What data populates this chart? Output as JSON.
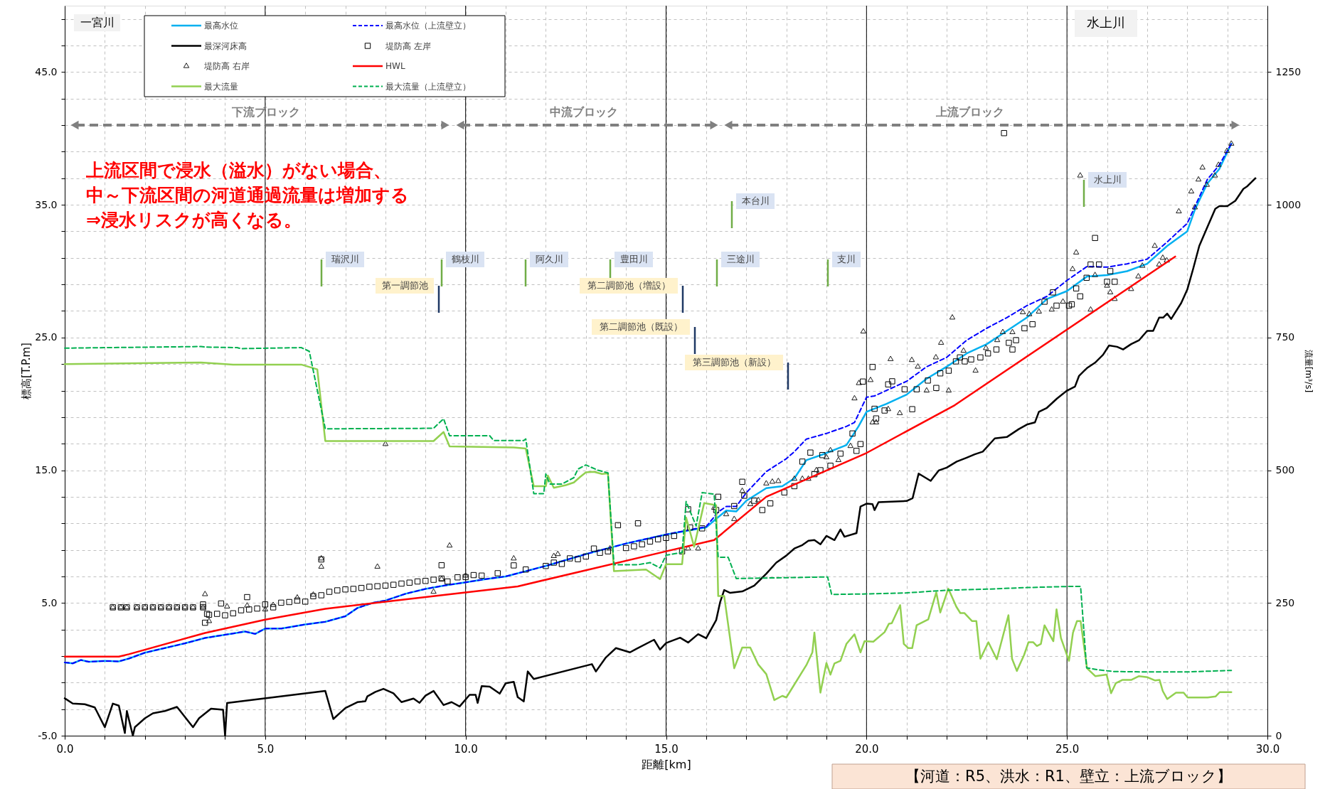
{
  "chart_data": {
    "type": "line",
    "xlabel": "距離[km]",
    "ylabel": "標高[T.P.m]",
    "y2label": "流量[m³/s]",
    "xlim": [
      0,
      30
    ],
    "ylim": [
      -5,
      50
    ],
    "y2lim": [
      0,
      1375
    ],
    "xticks": [
      {
        "value": 0,
        "label": "0.0"
      },
      {
        "value": 1,
        "label": null
      },
      {
        "value": 2,
        "label": null
      },
      {
        "value": 3,
        "label": null
      },
      {
        "value": 4,
        "label": null
      },
      {
        "value": 5,
        "label": "5.0"
      },
      {
        "value": 6,
        "label": null
      },
      {
        "value": 7,
        "label": null
      },
      {
        "value": 8,
        "label": null
      },
      {
        "value": 9,
        "label": null
      },
      {
        "value": 10,
        "label": "10.0"
      },
      {
        "value": 11,
        "label": null
      },
      {
        "value": 12,
        "label": null
      },
      {
        "value": 13,
        "label": null
      },
      {
        "value": 14,
        "label": null
      },
      {
        "value": 15,
        "label": "15.0"
      },
      {
        "value": 16,
        "label": null
      },
      {
        "value": 17,
        "label": null
      },
      {
        "value": 18,
        "label": null
      },
      {
        "value": 19,
        "label": null
      },
      {
        "value": 20,
        "label": "20.0"
      },
      {
        "value": 21,
        "label": null
      },
      {
        "value": 22,
        "label": null
      },
      {
        "value": 23,
        "label": null
      },
      {
        "value": 24,
        "label": null
      },
      {
        "value": 25,
        "label": "25.0"
      },
      {
        "value": 26,
        "label": null
      },
      {
        "value": 27,
        "label": null
      },
      {
        "value": 28,
        "label": null
      },
      {
        "value": 29,
        "label": null
      },
      {
        "value": 30,
        "label": "30.0"
      }
    ],
    "yticks": [
      {
        "value": -5,
        "label": "-5.0"
      },
      {
        "value": -3,
        "label": null
      },
      {
        "value": -1,
        "label": null
      },
      {
        "value": 1,
        "label": null
      },
      {
        "value": 3,
        "label": null
      },
      {
        "value": 5,
        "label": "5.0"
      },
      {
        "value": 7,
        "label": null
      },
      {
        "value": 9,
        "label": null
      },
      {
        "value": 11,
        "label": null
      },
      {
        "value": 13,
        "label": null
      },
      {
        "value": 15,
        "label": "15.0"
      },
      {
        "value": 17,
        "label": null
      },
      {
        "value": 19,
        "label": null
      },
      {
        "value": 21,
        "label": null
      },
      {
        "value": 23,
        "label": null
      },
      {
        "value": 25,
        "label": "25.0"
      },
      {
        "value": 27,
        "label": null
      },
      {
        "value": 29,
        "label": null
      },
      {
        "value": 31,
        "label": null
      },
      {
        "value": 33,
        "label": null
      },
      {
        "value": 35,
        "label": "35.0"
      },
      {
        "value": 37,
        "label": null
      },
      {
        "value": 39,
        "label": null
      },
      {
        "value": 41,
        "label": null
      },
      {
        "value": 43,
        "label": null
      },
      {
        "value": 45,
        "label": "45.0"
      },
      {
        "value": 47,
        "label": null
      },
      {
        "value": 49,
        "label": null
      }
    ],
    "y2ticks": [
      0,
      250,
      500,
      750,
      1000,
      1250
    ],
    "grid": true,
    "legend": "top left",
    "series": [
      {
        "name": "最高水位",
        "color": "#00b0f0",
        "x": [
          0,
          0.2,
          0.4,
          0.6,
          1.0,
          1.35,
          1.6,
          2.0,
          3.0,
          3.5,
          4.5,
          4.75,
          5.0,
          5.4,
          6.0,
          6.5,
          7.0,
          7.3,
          7.7,
          8.0,
          8.5,
          9.0,
          9.5,
          10.0,
          10.5,
          11.0,
          12.0,
          13.0,
          14.0,
          15.0,
          16.0,
          16.3,
          16.5,
          16.75,
          17.0,
          17.5,
          17.9,
          18.2,
          18.5,
          18.9,
          19.5,
          19.8,
          20.0,
          20.5,
          21.0,
          21.5,
          22.0,
          22.5,
          23.0,
          23.5,
          24.0,
          24.5,
          25.0,
          25.5,
          26.0,
          26.5,
          27.0,
          27.5,
          28.0,
          28.2,
          28.5,
          28.8,
          29.1
        ],
        "values": [
          0.52,
          0.45,
          0.7,
          0.57,
          0.63,
          0.6,
          0.81,
          1.25,
          1.96,
          2.36,
          2.85,
          2.67,
          3.07,
          3.07,
          3.38,
          3.58,
          4.0,
          4.62,
          5.02,
          5.18,
          5.69,
          6.06,
          6.33,
          6.55,
          6.8,
          7.0,
          7.79,
          8.68,
          9.48,
          10.16,
          10.69,
          11.47,
          11.96,
          11.89,
          12.7,
          13.65,
          13.8,
          14.39,
          15.76,
          16.18,
          16.9,
          18.3,
          19.4,
          20.0,
          20.7,
          21.9,
          22.8,
          23.8,
          24.5,
          25.5,
          26.5,
          27.9,
          28.5,
          29.6,
          29.7,
          30.0,
          30.55,
          31.9,
          33.0,
          34.7,
          36.6,
          37.7,
          39.6
        ]
      },
      {
        "name": "最高水位（上流壁立）",
        "line_style": "dashed",
        "color": "#0000ff",
        "x": [
          0,
          0.2,
          0.4,
          0.6,
          1.0,
          1.35,
          1.6,
          2.0,
          3.0,
          3.5,
          4.5,
          4.75,
          5.0,
          5.4,
          6.0,
          6.5,
          7.0,
          7.3,
          7.7,
          8.0,
          8.5,
          9.0,
          9.5,
          10.0,
          10.5,
          11.0,
          12.0,
          13.0,
          14.0,
          15.0,
          16.0,
          16.3,
          16.5,
          16.75,
          17.0,
          17.5,
          18.0,
          18.2,
          18.5,
          19.0,
          19.5,
          19.7,
          20.0,
          20.2,
          21.0,
          21.5,
          22.0,
          22.5,
          23.0,
          23.5,
          24.0,
          24.5,
          25.0,
          25.5,
          26.0,
          26.5,
          27.0,
          27.5,
          28.0,
          28.5,
          28.8,
          29.1
        ],
        "values": [
          0.52,
          0.45,
          0.7,
          0.57,
          0.63,
          0.6,
          0.81,
          1.25,
          1.96,
          2.36,
          2.85,
          2.67,
          3.07,
          3.07,
          3.38,
          3.58,
          4.0,
          4.62,
          5.02,
          5.18,
          5.69,
          6.06,
          6.33,
          6.55,
          6.8,
          7.0,
          7.79,
          8.68,
          9.48,
          10.16,
          10.75,
          11.85,
          12.27,
          12.27,
          13.3,
          14.9,
          15.87,
          16.4,
          17.35,
          17.77,
          18.3,
          18.6,
          20.5,
          20.6,
          21.7,
          22.8,
          23.5,
          24.8,
          25.7,
          26.5,
          27.4,
          28.1,
          29.3,
          30.35,
          30.3,
          30.55,
          30.9,
          32.2,
          33.6,
          36.9,
          38.0,
          39.6
        ]
      },
      {
        "name": "最深河床高",
        "color": "#000000",
        "x": [
          0,
          0.2,
          0.5,
          0.75,
          1.0,
          1.2,
          1.35,
          1.5,
          1.55,
          1.7,
          1.75,
          2.0,
          2.2,
          2.5,
          2.8,
          3.2,
          3.35,
          3.65,
          3.95,
          4.0,
          4.05,
          6.5,
          6.7,
          7.0,
          7.3,
          7.5,
          7.55,
          7.75,
          7.95,
          8.2,
          8.4,
          8.7,
          8.85,
          9.0,
          9.2,
          9.45,
          9.65,
          9.85,
          10.1,
          10.25,
          10.3,
          10.4,
          10.6,
          10.85,
          11.0,
          11.2,
          11.3,
          11.45,
          11.55,
          11.7,
          13.15,
          13.25,
          13.5,
          13.75,
          14.1,
          14.25,
          14.7,
          14.85,
          15.0,
          15.35,
          15.55,
          15.8,
          16.0,
          16.25,
          16.35,
          16.45,
          16.6,
          16.9,
          17.2,
          17.5,
          17.75,
          18.0,
          18.2,
          18.4,
          18.55,
          18.7,
          18.85,
          19.0,
          19.2,
          19.35,
          19.45,
          19.75,
          19.85,
          20.0,
          20.15,
          20.2,
          20.3,
          21.0,
          21.15,
          21.3,
          21.6,
          21.8,
          22.0,
          22.25,
          22.5,
          22.7,
          22.9,
          23.2,
          23.5,
          23.8,
          24.0,
          24.2,
          24.3,
          24.5,
          24.75,
          25.0,
          25.2,
          25.3,
          25.5,
          25.7,
          25.9,
          26.05,
          26.25,
          26.4,
          26.6,
          26.8,
          27.0,
          27.15,
          27.3,
          27.4,
          27.5,
          27.6,
          27.85,
          28.0,
          28.15,
          28.3,
          28.5,
          28.7,
          28.8,
          29.0,
          29.2,
          29.4,
          29.5,
          29.7
        ],
        "values": [
          -2.18,
          -2.58,
          -2.63,
          -2.87,
          -4.36,
          -2.58,
          -2.74,
          -4.8,
          -3.14,
          -5.0,
          -4.36,
          -3.69,
          -3.31,
          -3.14,
          -2.83,
          -4.36,
          -3.69,
          -2.96,
          -3.05,
          -5.0,
          -2.54,
          -1.63,
          -3.74,
          -2.92,
          -2.47,
          -2.4,
          -2.03,
          -1.7,
          -1.47,
          -1.81,
          -2.47,
          -2.2,
          -2.52,
          -1.98,
          -1.63,
          -2.69,
          -2.47,
          -2.8,
          -1.92,
          -1.92,
          -2.53,
          -1.26,
          -1.3,
          -1.83,
          -1.05,
          -0.94,
          -2.1,
          -2.42,
          -0.16,
          -0.73,
          0.39,
          -0.16,
          0.9,
          1.6,
          1.28,
          1.53,
          2.23,
          1.49,
          1.98,
          2.38,
          2.02,
          2.65,
          2.34,
          3.71,
          5.08,
          5.97,
          5.76,
          5.87,
          6.31,
          7.2,
          8.04,
          8.57,
          9.1,
          9.36,
          9.69,
          9.74,
          9.42,
          10.05,
          9.74,
          10.54,
          9.99,
          10.26,
          12.27,
          12.48,
          12.44,
          12.0,
          12.59,
          12.68,
          12.9,
          14.75,
          14.2,
          14.98,
          15.2,
          15.65,
          15.95,
          16.2,
          16.4,
          17.4,
          17.5,
          18.1,
          18.44,
          18.6,
          19.4,
          19.7,
          20.4,
          21.0,
          21.3,
          22.1,
          22.7,
          23.1,
          23.7,
          24.4,
          24.3,
          24.1,
          24.5,
          24.8,
          25.5,
          25.5,
          26.5,
          26.5,
          26.8,
          26.4,
          27.6,
          28.6,
          30.2,
          31.9,
          33.3,
          34.7,
          34.9,
          34.9,
          35.3,
          36.2,
          36.4,
          37.0
        ]
      },
      {
        "name": "堤防高 左岸",
        "type": "scatter",
        "marker": "square",
        "color": "#000000",
        "x": [
          1.2,
          1.4,
          1.55,
          1.8,
          2.0,
          2.2,
          2.4,
          2.6,
          2.8,
          3.0,
          3.2,
          3.45,
          3.45,
          3.55,
          3.5,
          3.6,
          3.8,
          3.9,
          4.0,
          4.2,
          4.4,
          4.55,
          4.6,
          4.8,
          5.0,
          5.2,
          5.4,
          5.6,
          5.8,
          6.0,
          6.2,
          6.4,
          6.4,
          6.6,
          6.8,
          7.0,
          7.2,
          7.4,
          7.6,
          7.8,
          8.0,
          8.2,
          8.4,
          8.6,
          8.8,
          9.0,
          9.2,
          9.4,
          9.4,
          9.55,
          9.8,
          10.0,
          10.2,
          10.4,
          10.8,
          11.2,
          11.5,
          12.0,
          12.2,
          12.4,
          12.6,
          12.8,
          13.0,
          13.2,
          13.35,
          13.55,
          13.8,
          14.0,
          14.2,
          14.3,
          14.4,
          14.6,
          14.8,
          15.0,
          15.2,
          15.4,
          15.55,
          15.6,
          15.9,
          16.25,
          16.3,
          16.7,
          16.9,
          16.95,
          17.2,
          17.4,
          17.6,
          17.95,
          18.2,
          18.4,
          18.6,
          18.7,
          18.85,
          18.9,
          19.1,
          19.35,
          19.65,
          19.75,
          19.85,
          19.91,
          20.15,
          20.2,
          20.45,
          20.24,
          20.64,
          20.54,
          20.95,
          21.14,
          21.25,
          21.53,
          21.74,
          21.84,
          22.05,
          22.23,
          22.33,
          22.45,
          22.61,
          22.84,
          23.03,
          23.24,
          23.43,
          23.55,
          23.64,
          23.73,
          23.94,
          24.14,
          24.44,
          24.65,
          24.74,
          25.05,
          25.12,
          25.23,
          25.33,
          25.49,
          25.59,
          25.7,
          25.8,
          26.0,
          26.08,
          26.19
        ],
        "values": [
          4.67,
          4.67,
          4.67,
          4.67,
          4.67,
          4.67,
          4.67,
          4.67,
          4.67,
          4.67,
          4.67,
          4.67,
          4.89,
          4.18,
          3.51,
          4.11,
          4.18,
          4.96,
          4.07,
          4.22,
          4.45,
          5.44,
          4.51,
          4.58,
          4.89,
          4.67,
          5.02,
          5.07,
          5.18,
          5.1,
          5.51,
          8.28,
          5.58,
          5.84,
          5.95,
          6.02,
          6.06,
          6.13,
          6.22,
          6.26,
          6.31,
          6.37,
          6.46,
          6.53,
          6.62,
          6.66,
          6.75,
          7.84,
          6.84,
          6.62,
          6.93,
          6.95,
          7.1,
          7.06,
          7.24,
          7.83,
          7.52,
          7.79,
          8.04,
          7.94,
          8.36,
          8.3,
          8.5,
          9.1,
          8.78,
          8.89,
          10.86,
          9.14,
          9.27,
          11.0,
          9.42,
          9.63,
          9.8,
          9.9,
          10.05,
          8.89,
          12.06,
          10.69,
          10.62,
          12.0,
          13.0,
          12.3,
          14.13,
          13.08,
          12.7,
          12.0,
          12.5,
          13.33,
          13.8,
          15.65,
          16.33,
          14.7,
          15.0,
          16.14,
          15.34,
          16.25,
          17.77,
          16.46,
          16.97,
          21.68,
          22.78,
          19.63,
          19.5,
          18.9,
          21.7,
          21.47,
          21.1,
          19.6,
          21.1,
          21.76,
          21.2,
          22.3,
          22.5,
          23.2,
          23.5,
          23.2,
          23.35,
          23.5,
          23.8,
          24.1,
          40.4,
          24.6,
          24.1,
          24.8,
          25.7,
          26.0,
          27.7,
          28.4,
          27.4,
          27.4,
          27.5,
          28.7,
          28.1,
          29.5,
          30.5,
          32.5,
          30.5,
          29.2,
          30.0,
          29.2
        ]
      },
      {
        "name": "堤防高 右岸",
        "type": "scatter",
        "marker": "triangle",
        "color": "#1a1a1a",
        "x": [
          1.2,
          1.4,
          1.55,
          1.8,
          2.0,
          2.2,
          2.4,
          2.6,
          2.8,
          3.0,
          3.2,
          3.45,
          3.5,
          3.6,
          4.05,
          4.55,
          5.0,
          5.2,
          5.8,
          6.2,
          6.4,
          6.4,
          7.8,
          8.0,
          9.2,
          9.4,
          9.6,
          10.0,
          11.2,
          12.2,
          12.3,
          13.6,
          15.55,
          15.8,
          16.2,
          16.5,
          16.7,
          16.9,
          17.1,
          17.3,
          17.5,
          17.65,
          17.8,
          18.2,
          18.4,
          18.55,
          18.75,
          19.0,
          19.1,
          19.3,
          19.6,
          19.7,
          19.81,
          19.92,
          20.1,
          20.15,
          20.24,
          20.54,
          20.83,
          20.6,
          21.13,
          21.28,
          21.5,
          21.73,
          21.86,
          22.05,
          22.14,
          22.42,
          22.72,
          22.98,
          23.26,
          23.4,
          23.64,
          23.9,
          24.06,
          24.3,
          24.62,
          24.9,
          25.14,
          25.23,
          25.33,
          25.59,
          25.7,
          26.0,
          26.08,
          26.19,
          26.6,
          26.78,
          26.88,
          27.19,
          27.3,
          27.39,
          27.49,
          27.79,
          28.1,
          28.28,
          28.38,
          28.19,
          28.49,
          28.69,
          28.78,
          28.99,
          29.1
        ],
        "values": [
          4.67,
          4.67,
          4.67,
          4.67,
          4.67,
          4.67,
          4.67,
          4.67,
          4.67,
          4.67,
          4.67,
          4.67,
          5.66,
          3.63,
          4.73,
          4.8,
          4.51,
          4.84,
          5.4,
          5.62,
          7.73,
          8.35,
          7.73,
          16.97,
          5.84,
          6.8,
          9.32,
          7.06,
          8.35,
          8.53,
          8.68,
          9.1,
          9.1,
          9.1,
          12.17,
          11.68,
          11.32,
          13.44,
          12.44,
          12.74,
          14.0,
          14.13,
          14.18,
          14.35,
          14.35,
          14.35,
          15.0,
          15.97,
          16.5,
          15.76,
          16.82,
          20.41,
          21.56,
          25.45,
          21.79,
          18.6,
          18.6,
          19.6,
          19.3,
          23.37,
          23.3,
          22.8,
          21.0,
          23.5,
          24.6,
          21.0,
          26.5,
          24.0,
          22.5,
          24.2,
          24.8,
          25.4,
          25.4,
          26.9,
          26.75,
          26.95,
          27.1,
          27.7,
          30.15,
          31.4,
          37.2,
          27.1,
          29.7,
          28.9,
          28.4,
          27.9,
          28.65,
          29.6,
          30.4,
          31.9,
          30.5,
          31.0,
          30.8,
          34.5,
          36.0,
          36.9,
          37.8,
          34.8,
          36.5,
          37.2,
          38.0,
          39.05,
          39.6
        ]
      },
      {
        "name": "HWL",
        "color": "#ff0000",
        "x": [
          0,
          1.35,
          1.6,
          3.5,
          5.0,
          6.5,
          8.0,
          11.3,
          15.0,
          16.2,
          17.5,
          20.0,
          22.2,
          27.7
        ],
        "values": [
          0.96,
          0.96,
          1.14,
          2.74,
          3.74,
          4.56,
          5.1,
          6.25,
          8.89,
          9.74,
          13.0,
          16.3,
          19.9,
          31.1
        ]
      },
      {
        "name": "最大流量",
        "axis": "y2",
        "color": "#92d050",
        "x": [
          0,
          3.4,
          4.2,
          5.9,
          6.3,
          6.5,
          9.2,
          9.45,
          9.6,
          11.2,
          11.5,
          11.7,
          12.0,
          12.05,
          12.2,
          12.5,
          12.7,
          12.85,
          13.0,
          13.2,
          13.4,
          13.55,
          13.7,
          14.5,
          14.85,
          15.0,
          15.4,
          15.5,
          15.7,
          15.95,
          16.25,
          16.3,
          16.45,
          16.7,
          16.9,
          17.1,
          17.3,
          17.5,
          17.7,
          17.9,
          18.0,
          18.5,
          18.65,
          18.7,
          18.85,
          19.0,
          19.1,
          19.2,
          19.35,
          19.5,
          19.7,
          19.85,
          19.95,
          20.17,
          20.45,
          20.56,
          20.63,
          20.84,
          20.93,
          21.04,
          21.14,
          21.25,
          21.54,
          21.74,
          21.84,
          22.04,
          22.24,
          22.34,
          22.44,
          22.63,
          22.74,
          22.84,
          23.04,
          23.25,
          23.54,
          23.63,
          23.75,
          23.93,
          24.04,
          24.16,
          24.25,
          24.35,
          24.44,
          24.66,
          24.74,
          24.85,
          25.05,
          25.15,
          25.25,
          25.34,
          25.5,
          25.71,
          25.99,
          26.1,
          26.22,
          26.38,
          26.6,
          26.79,
          27.01,
          27.2,
          27.31,
          27.39,
          27.5,
          27.72,
          27.91,
          28.01,
          28.51,
          28.71,
          28.81,
          29.1
        ],
        "values": [
          700,
          703,
          699,
          699,
          690,
          555,
          555,
          572,
          545,
          543,
          541,
          470,
          470,
          490,
          467,
          472,
          477,
          487,
          496,
          497,
          493,
          494,
          310,
          313,
          295,
          323,
          323,
          411,
          356,
          438,
          434,
          263,
          263,
          127,
          166,
          166,
          134,
          116,
          67,
          75,
          72,
          133,
          157,
          194,
          81,
          137,
          115,
          136,
          141,
          173,
          191,
          157,
          178,
          177,
          195,
          211,
          212,
          246,
          173,
          165,
          165,
          208,
          219,
          270,
          232,
          277,
          243,
          231,
          231,
          216,
          216,
          145,
          176,
          144,
          227,
          145,
          122,
          152,
          176,
          176,
          169,
          173,
          208,
          178,
          238,
          184,
          141,
          194,
          216,
          216,
          127,
          112,
          115,
          80,
          99,
          105,
          105,
          112,
          110,
          104,
          105,
          84,
          69,
          81,
          81,
          72,
          72,
          74,
          82,
          82
        ]
      },
      {
        "name": "最大流量（上流壁立）",
        "axis": "y2",
        "line_style": "dashed",
        "color": "#00b050",
        "x": [
          0,
          3.4,
          3.5,
          4.3,
          4.4,
          5.9,
          6.1,
          6.5,
          9.2,
          9.45,
          9.6,
          10.6,
          10.7,
          11.45,
          11.5,
          11.7,
          11.95,
          12.0,
          12.1,
          12.4,
          12.7,
          12.8,
          13.0,
          13.3,
          13.55,
          13.7,
          14.3,
          14.6,
          14.85,
          15.0,
          15.4,
          15.5,
          15.75,
          15.9,
          16.2,
          16.3,
          16.55,
          16.75,
          19.03,
          19.13,
          20.0,
          21.0,
          22.0,
          23.0,
          24.0,
          25.0,
          25.34,
          25.49,
          25.78,
          26.16,
          26.98,
          27.95,
          29.1
        ],
        "values": [
          730,
          733,
          732,
          731,
          729,
          731,
          724,
          578,
          579,
          597,
          565,
          565,
          556,
          556,
          559,
          456,
          456,
          493,
          474,
          474,
          486,
          502,
          510,
          500,
          495,
          322,
          322,
          326,
          316,
          340,
          345,
          441,
          395,
          458,
          455,
          336,
          336,
          296,
          299,
          266,
          267,
          269,
          274,
          276,
          279,
          281,
          281,
          128,
          124,
          121,
          120,
          120,
          123
        ]
      }
    ],
    "annotations": [
      "一宮川",
      "水上川",
      "上流区間で浸水（溢水）がない場合、",
      "中～下流区間の河道通過流量は増加する",
      "⇒浸水リスクが高くなる。",
      "【河道：R5、洪水：R1、壁立：上流ブロック】",
      "下流ブロック",
      "中流ブロック",
      "上流ブロック",
      "瑞沢川",
      "鶴枝川",
      "阿久川",
      "豊田川",
      "三途川",
      "本台川",
      "支川",
      "水上川",
      "第一調節池",
      "第二調節池（増設）",
      "第二調節池（既設）",
      "第三調節池（新設）"
    ]
  }
}
